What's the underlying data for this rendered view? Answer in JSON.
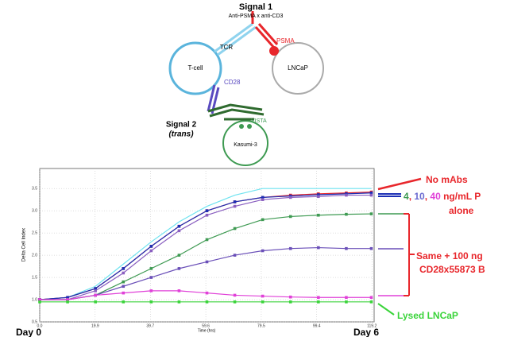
{
  "diagram": {
    "signal1": "Signal 1",
    "signal1_sub": "Anti-PSMA x anti-CD3",
    "tcr": "TCR",
    "psma": "PSMA",
    "tcell": "T-cell",
    "lncap": "LNCaP",
    "cd28": "CD28",
    "vista": "VISTA",
    "signal2": "Signal 2",
    "signal2_sub": "(trans)",
    "kasumi": "Kasumi-3"
  },
  "chart_data": {
    "type": "line",
    "x_label": "Time (hrs)",
    "y_label": "Delta Cell Index",
    "x": [
      0,
      10,
      20,
      30,
      40,
      50,
      60,
      70,
      80,
      90,
      100,
      110,
      119
    ],
    "series": [
      {
        "color": "#6fe3f0",
        "values": [
          1.0,
          1.05,
          1.3,
          1.8,
          2.3,
          2.75,
          3.1,
          3.35,
          3.5,
          3.5,
          3.5,
          3.5,
          3.5
        ]
      },
      {
        "color": "#e8262b",
        "values": [
          1.0,
          1.05,
          1.25,
          1.7,
          2.2,
          2.65,
          3.0,
          3.2,
          3.3,
          3.35,
          3.38,
          3.4,
          3.42
        ]
      },
      {
        "color": "#1c2fb5",
        "values": [
          1.0,
          1.05,
          1.25,
          1.7,
          2.2,
          2.65,
          3.0,
          3.2,
          3.3,
          3.33,
          3.36,
          3.38,
          3.4
        ]
      },
      {
        "color": "#8a5fc0",
        "values": [
          1.0,
          1.0,
          1.2,
          1.6,
          2.1,
          2.55,
          2.9,
          3.1,
          3.25,
          3.3,
          3.32,
          3.35,
          3.35
        ]
      },
      {
        "color": "#3e9a52",
        "values": [
          1.0,
          1.0,
          1.1,
          1.4,
          1.7,
          2.0,
          2.35,
          2.6,
          2.8,
          2.87,
          2.9,
          2.92,
          2.93
        ]
      },
      {
        "color": "#6a4fb8",
        "values": [
          1.0,
          1.0,
          1.1,
          1.3,
          1.5,
          1.7,
          1.85,
          2.0,
          2.1,
          2.15,
          2.17,
          2.15,
          2.15
        ]
      },
      {
        "color": "#e040d8",
        "values": [
          1.0,
          1.0,
          1.1,
          1.15,
          1.2,
          1.2,
          1.15,
          1.1,
          1.08,
          1.06,
          1.05,
          1.05,
          1.05
        ]
      },
      {
        "color": "#3ad43a",
        "values": [
          0.95,
          0.95,
          0.95,
          0.95,
          0.95,
          0.95,
          0.95,
          0.95,
          0.95,
          0.95,
          0.95,
          0.95,
          0.95
        ]
      }
    ],
    "xlim": [
      0,
      120
    ],
    "ylim": [
      0.5,
      3.95
    ],
    "xticks": [
      {
        "value": 0,
        "label": "0.0"
      },
      19.9,
      39.7,
      59.6,
      79.5,
      99.4,
      119.2
    ],
    "yticks": [
      0.5,
      {
        "value": 1,
        "label": "1.0"
      },
      1.5,
      {
        "value": 2,
        "label": "2.0"
      },
      2.5,
      {
        "value": 3,
        "label": "3.0"
      },
      3.5
    ],
    "grid": true,
    "annotations": {
      "no_mabs": "No mAbs",
      "dose_parts": [
        "4",
        ", ",
        "10",
        ", ",
        "40",
        " ng/mL P"
      ],
      "alone": "alone",
      "same": "Same + 100 ng",
      "cd28": "CD28x55873 B",
      "lysed": "Lysed LNCaP",
      "day0": "Day 0",
      "day6": "Day 6"
    }
  }
}
